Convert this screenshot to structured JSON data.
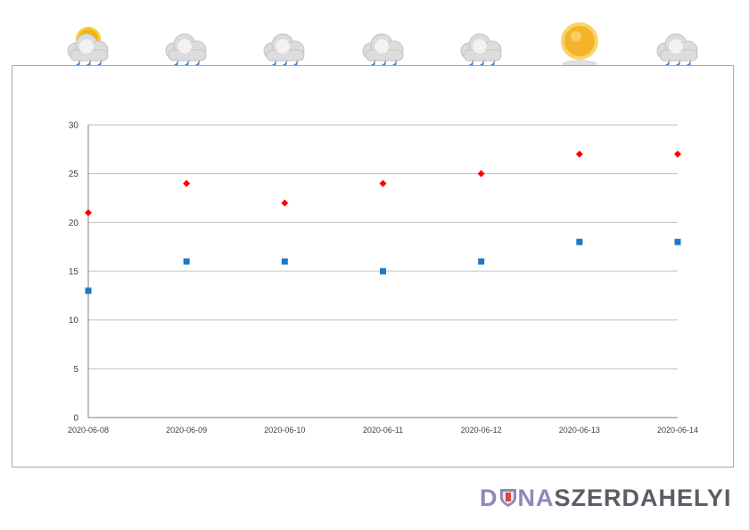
{
  "forecast_icons": [
    "rain-with-sun-icon",
    "rain-icon",
    "rain-icon",
    "rain-icon",
    "rain-icon",
    "sun-icon",
    "rain-icon"
  ],
  "logo": {
    "part1": "D",
    "part2": "NA",
    "part3": "SZERDAHELYI"
  },
  "colors": {
    "max_series": "#ff0000",
    "min_series": "#1f77c9",
    "grid": "#bfbfbf",
    "axis": "#808080",
    "tick_text": "#404040"
  },
  "chart_data": {
    "type": "scatter",
    "categories": [
      "2020-06-08",
      "2020-06-09",
      "2020-06-10",
      "2020-06-11",
      "2020-06-12",
      "2020-06-13",
      "2020-06-14"
    ],
    "series": [
      {
        "marker": "diamond",
        "color": "#ff0000",
        "values": [
          21,
          24,
          22,
          24,
          25,
          27,
          27
        ]
      },
      {
        "marker": "square",
        "color": "#1f77c9",
        "values": [
          13,
          16,
          16,
          15,
          16,
          18,
          18
        ]
      }
    ],
    "ylim": [
      0,
      30
    ],
    "yticks": [
      0,
      5,
      10,
      15,
      20,
      25,
      30
    ],
    "grid": true,
    "legend": "none",
    "title": "",
    "xlabel": "",
    "ylabel": ""
  }
}
